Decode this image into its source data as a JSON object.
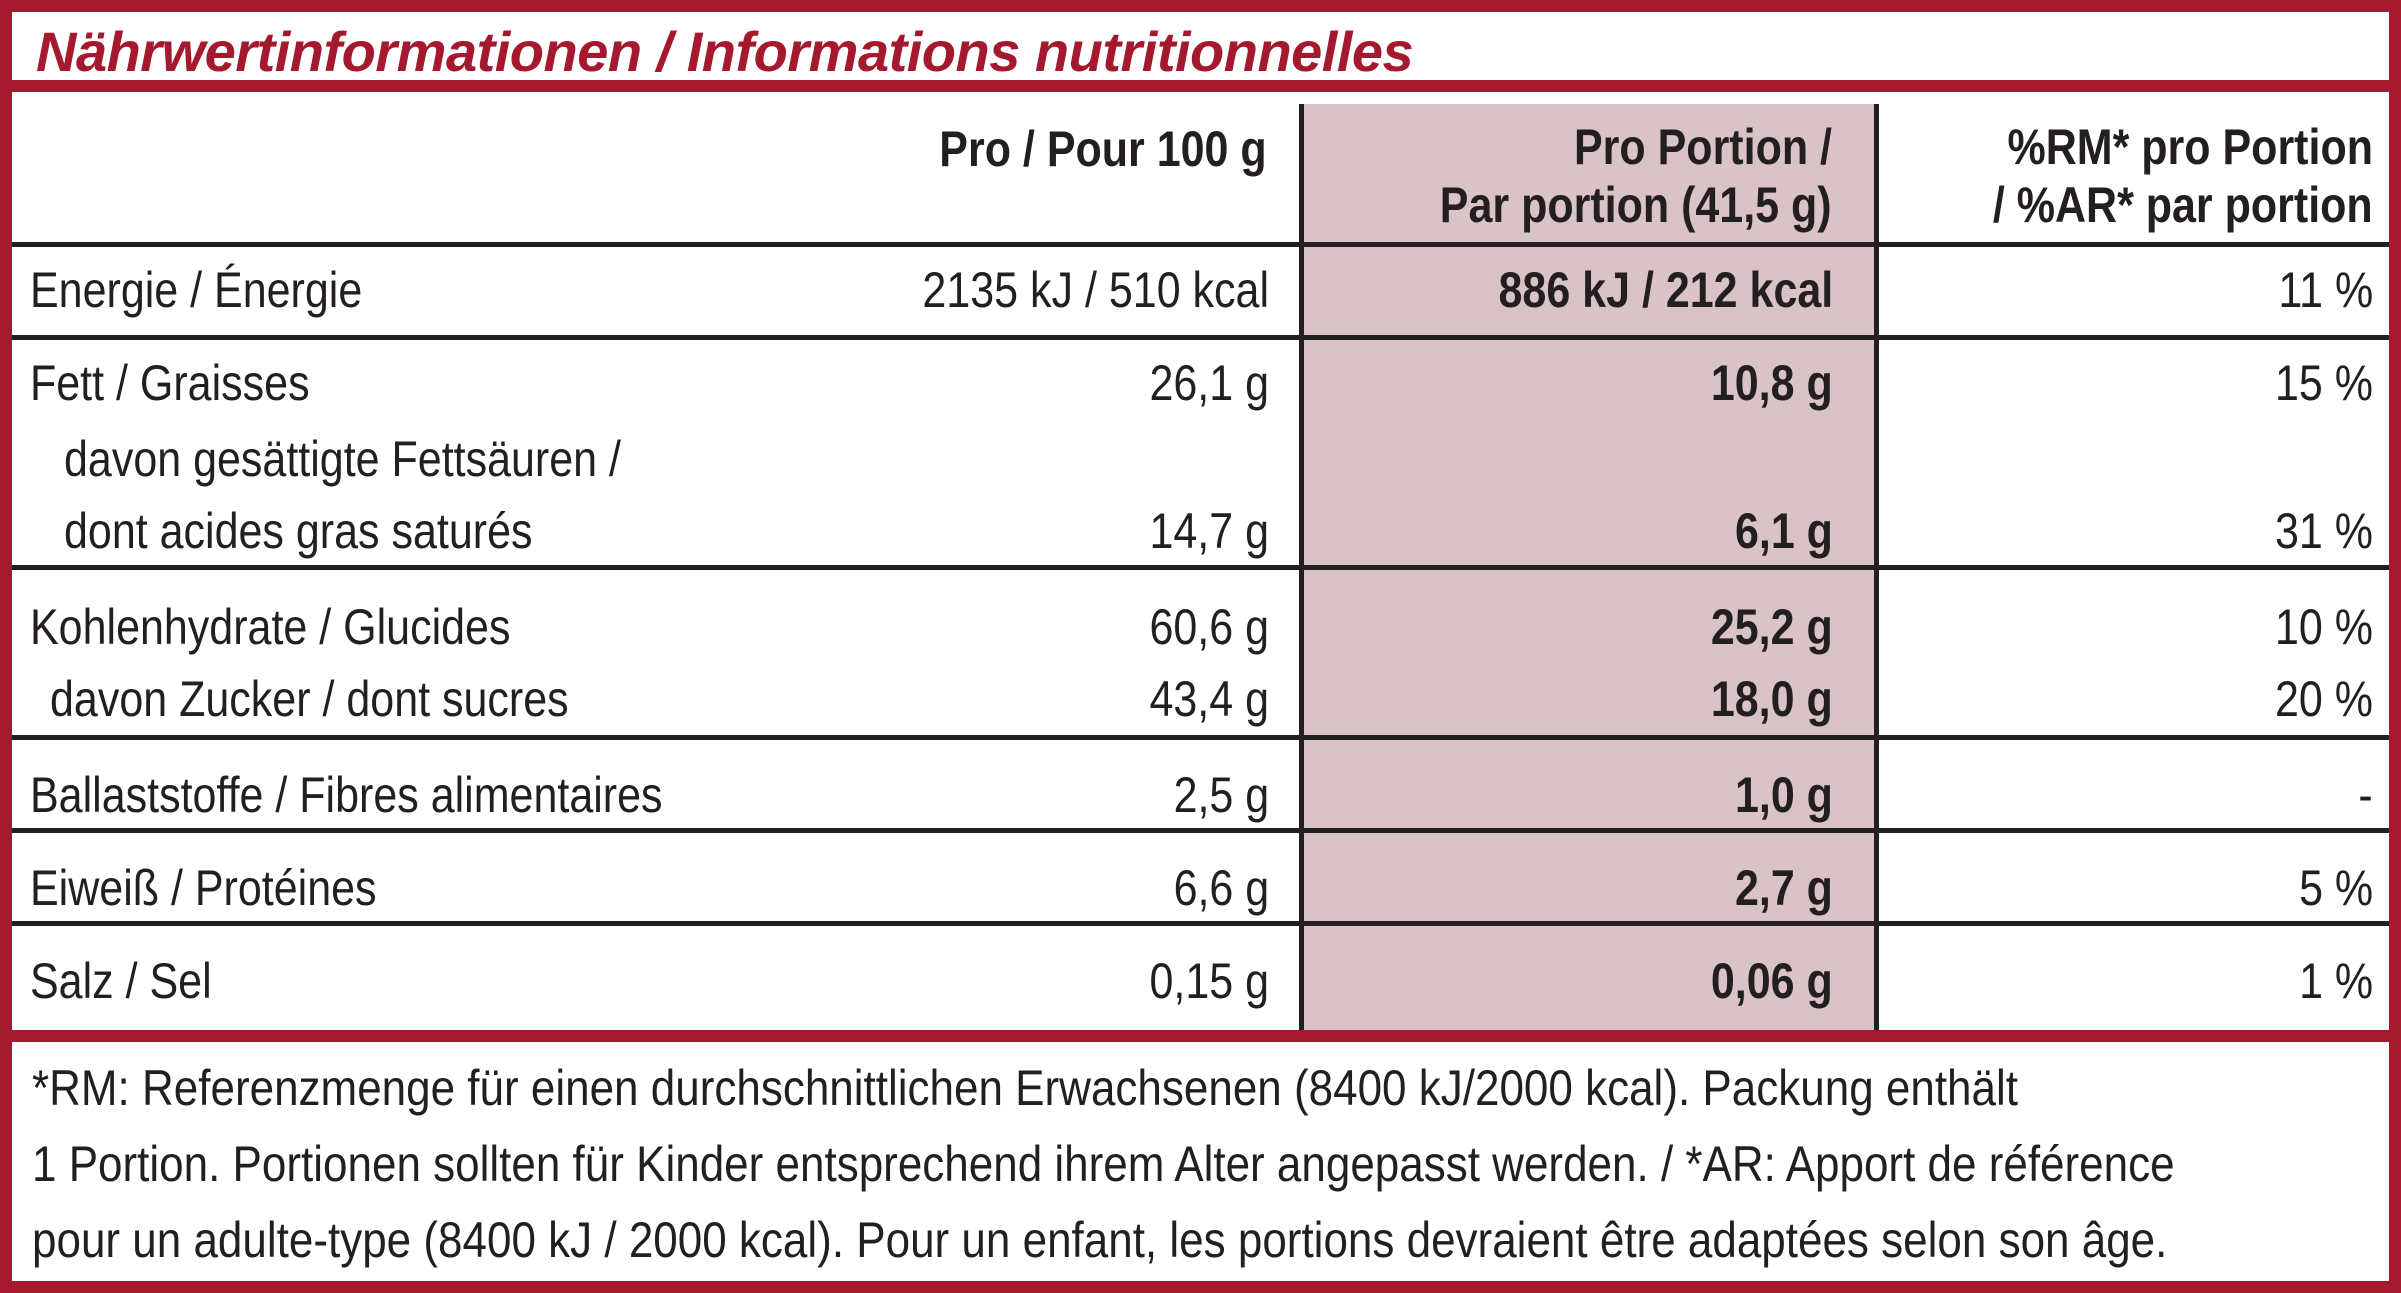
{
  "title": "Nährwertinformationen / Informations nutritionnelles",
  "colors": {
    "accent": "#a5192e",
    "shade": "#d9c3c6",
    "text": "#231f20"
  },
  "header": {
    "per100": "Pro / Pour 100 g",
    "portion_line1": "Pro Portion /",
    "portion_line2": "Par portion (41,5 g)",
    "rm_line1": "%RM* pro Portion",
    "rm_line2": "/ %AR* par portion"
  },
  "rows": {
    "energy": {
      "label": "Energie / Énergie",
      "per100": "2135 kJ / 510 kcal",
      "portion": "886 kJ / 212 kcal",
      "rm": "11 %"
    },
    "fat": {
      "label": "Fett / Graisses",
      "per100": "26,1 g",
      "portion": "10,8 g",
      "rm": "15 %"
    },
    "saturated": {
      "label_line1": "davon gesättigte Fettsäuren /",
      "label_line2": "dont acides gras saturés",
      "per100": "14,7 g",
      "portion": "6,1 g",
      "rm": "31 %"
    },
    "carbs": {
      "label": "Kohlenhydrate / Glucides",
      "per100": "60,6 g",
      "portion": "25,2 g",
      "rm": "10 %"
    },
    "sugars": {
      "label": "davon Zucker / dont sucres",
      "per100": "43,4 g",
      "portion": "18,0 g",
      "rm": "20 %"
    },
    "fibre": {
      "label": "Ballaststoffe / Fibres alimentaires",
      "per100": "2,5 g",
      "portion": "1,0 g",
      "rm": "-"
    },
    "protein": {
      "label": "Eiweiß / Protéines",
      "per100": "6,6 g",
      "portion": "2,7 g",
      "rm": "5 %"
    },
    "salt": {
      "label": "Salz / Sel",
      "per100": "0,15 g",
      "portion": "0,06 g",
      "rm": "1 %"
    }
  },
  "footnote": {
    "line1": "*RM: Referenzmenge für einen durchschnittlichen Erwachsenen (8400 kJ/2000 kcal). Packung enthält",
    "line2": "1 Portion. Portionen sollten für Kinder entsprechend ihrem Alter angepasst werden. / *AR: Apport de référence",
    "line3": "pour un adulte-type (8400 kJ / 2000 kcal). Pour un enfant, les portions devraient être adaptées selon son âge."
  }
}
